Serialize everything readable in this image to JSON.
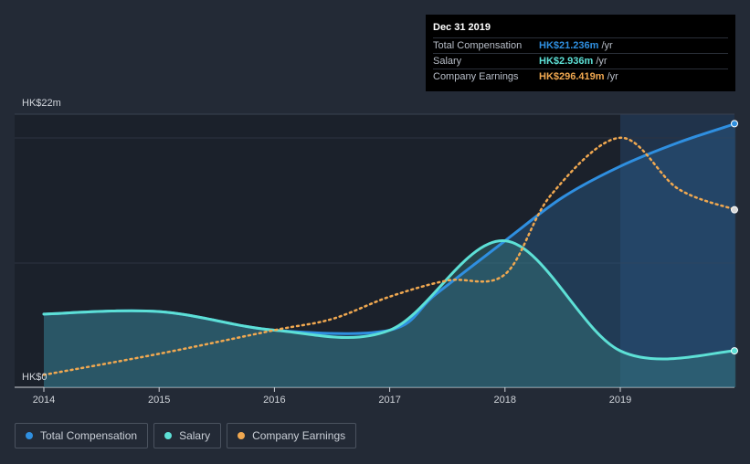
{
  "tooltip": {
    "date": "Dec 31 2019",
    "rows": [
      {
        "label": "Total Compensation",
        "value": "HK$21.236m",
        "unit": "/yr",
        "color": "#2f8fe0"
      },
      {
        "label": "Salary",
        "value": "HK$2.936m",
        "unit": "/yr",
        "color": "#5de0d6"
      },
      {
        "label": "Company Earnings",
        "value": "HK$296.419m",
        "unit": "/yr",
        "color": "#f0a850"
      }
    ]
  },
  "legend": [
    {
      "label": "Total Compensation",
      "color": "#2f8fe0"
    },
    {
      "label": "Salary",
      "color": "#5de0d6"
    },
    {
      "label": "Company Earnings",
      "color": "#f0a850"
    }
  ],
  "chart_data": {
    "type": "line",
    "title": "",
    "xlabel": "",
    "ylabel": "",
    "y_tick_labels": [
      "HK$0",
      "HK$22m"
    ],
    "ylim": [
      0,
      22
    ],
    "xlim": [
      2014,
      2020
    ],
    "x_tick_labels": [
      "2014",
      "2015",
      "2016",
      "2017",
      "2018",
      "2019"
    ],
    "x_ticks": [
      2014,
      2015,
      2016,
      2017,
      2018,
      2019
    ],
    "highlight_from": 2019,
    "series": [
      {
        "name": "Total Compensation",
        "color": "#2f8fe0",
        "unit": "HK$m",
        "points": [
          [
            2014,
            5.9
          ],
          [
            2015,
            6.1
          ],
          [
            2016,
            4.6
          ],
          [
            2017,
            4.6
          ],
          [
            2017.4,
            7.5
          ],
          [
            2018,
            11.8
          ],
          [
            2018.5,
            15.3
          ],
          [
            2019,
            17.8
          ],
          [
            2019.5,
            19.7
          ],
          [
            2020,
            21.236
          ]
        ]
      },
      {
        "name": "Salary",
        "color": "#5de0d6",
        "unit": "HK$m",
        "points": [
          [
            2014,
            5.9
          ],
          [
            2015,
            6.1
          ],
          [
            2016,
            4.6
          ],
          [
            2017,
            4.6
          ],
          [
            2018,
            11.8
          ],
          [
            2019,
            2.936
          ],
          [
            2020,
            2.936
          ]
        ]
      },
      {
        "name": "Company Earnings",
        "color": "#f0a850",
        "unit": "HK$m (relative scale)",
        "points": [
          [
            2014,
            1.0
          ],
          [
            2015,
            2.7
          ],
          [
            2016,
            4.6
          ],
          [
            2016.5,
            5.5
          ],
          [
            2017,
            7.3
          ],
          [
            2017.5,
            8.6
          ],
          [
            2018,
            9.1
          ],
          [
            2018.4,
            15.5
          ],
          [
            2019,
            20.1
          ],
          [
            2019.5,
            16.0
          ],
          [
            2020,
            14.3
          ]
        ]
      }
    ]
  }
}
